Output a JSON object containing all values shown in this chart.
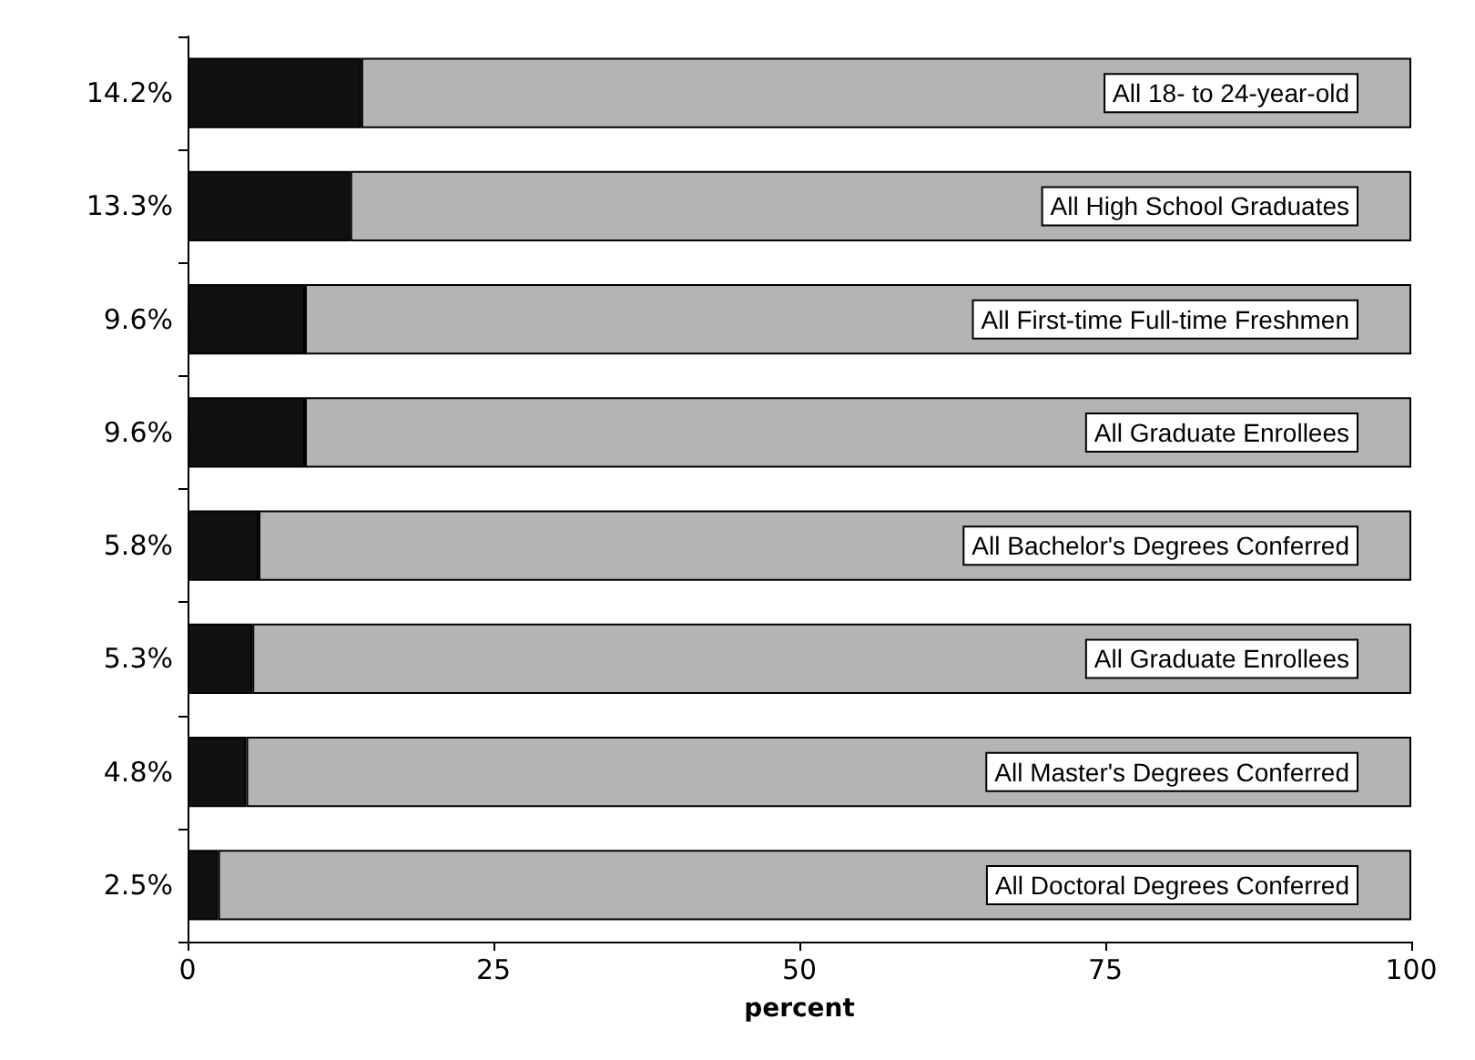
{
  "chart_data": {
    "type": "bar",
    "orientation": "horizontal",
    "stacked": true,
    "xlabel": "percent",
    "categories": [
      "All 18- to 24-year-old",
      "All High School Graduates",
      "All First-time Full-time Freshmen",
      "All Graduate Enrollees",
      "All Bachelor's Degrees Conferred",
      "All Graduate Enrollees",
      "All Master's Degrees Conferred",
      "All Doctoral Degrees Conferred"
    ],
    "series": [
      {
        "color": "#111111",
        "values": [
          14.2,
          13.3,
          9.6,
          9.6,
          5.8,
          5.3,
          4.8,
          2.5
        ],
        "value_labels": [
          "14.2%",
          "13.3%",
          "9.6%",
          "9.6%",
          "5.8%",
          "5.3%",
          "4.8%",
          "2.5%"
        ]
      },
      {
        "color": "#b4b4b4",
        "values": [
          85.8,
          86.7,
          90.4,
          90.4,
          94.2,
          94.7,
          95.2,
          97.5
        ]
      }
    ],
    "xlim": [
      0,
      100
    ],
    "xticks": [
      0,
      25,
      50,
      75,
      100
    ]
  }
}
